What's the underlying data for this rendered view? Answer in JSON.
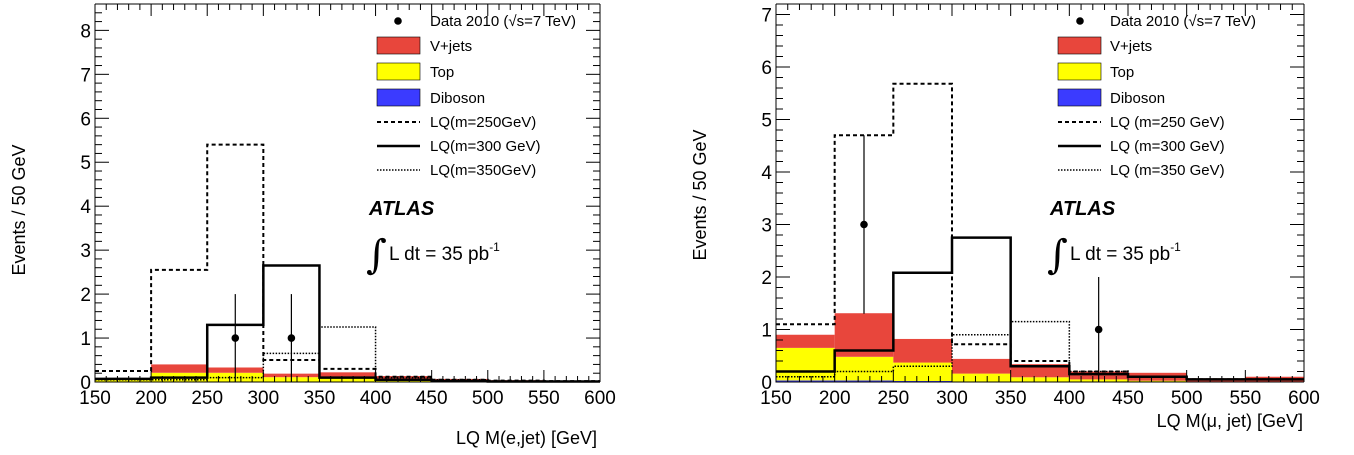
{
  "chart_data": [
    {
      "type": "histogram",
      "xlabel": "LQ M(e,jet) [GeV]",
      "ylabel": "Events / 50 GeV",
      "xlim": [
        150,
        600
      ],
      "ylim": [
        0,
        8.6
      ],
      "x_ticks": [
        "150",
        "200",
        "250",
        "300",
        "350",
        "400",
        "450",
        "500",
        "550",
        "600"
      ],
      "y_ticks": [
        "0",
        "1",
        "2",
        "3",
        "4",
        "5",
        "6",
        "7",
        "8"
      ],
      "bin_edges": [
        150,
        200,
        250,
        300,
        350,
        400,
        450,
        500,
        550,
        600
      ],
      "stack": [
        {
          "name": "Diboson",
          "color": "#3b3bff",
          "values": [
            0.01,
            0.01,
            0.01,
            0.01,
            0.01,
            0.005,
            0.0,
            0.0,
            0.0
          ]
        },
        {
          "name": "Top",
          "color": "#ffff00",
          "values": [
            0.04,
            0.2,
            0.2,
            0.1,
            0.07,
            0.05,
            0.02,
            0.01,
            0.0
          ]
        },
        {
          "name": "V+jets",
          "color": "#e8463c",
          "values": [
            0.04,
            0.19,
            0.12,
            0.08,
            0.14,
            0.08,
            0.05,
            0.03,
            0.03
          ]
        }
      ],
      "lq_lines": [
        {
          "name": "LQ(m=250GeV)",
          "style": "dashed",
          "values": [
            0.25,
            2.55,
            5.4,
            0.5,
            0.3,
            0.12,
            0.05,
            0.03,
            0.02
          ]
        },
        {
          "name": "LQ(m=300 GeV)",
          "style": "solid",
          "values": [
            0.07,
            0.1,
            1.3,
            2.65,
            0.1,
            0.05,
            0.02,
            0.01,
            0.01
          ]
        },
        {
          "name": "LQ(m=350GeV)",
          "style": "dotted",
          "values": [
            0.05,
            0.05,
            0.1,
            0.65,
            1.25,
            0.1,
            0.05,
            0.02,
            0.01
          ]
        }
      ],
      "data_points": [
        {
          "x": 275,
          "y": 1,
          "err": 1
        },
        {
          "x": 325,
          "y": 1,
          "err": 1
        }
      ],
      "legend": {
        "data": "Data 2010 (√s=7 TeV)",
        "vjets": "V+jets",
        "top": "Top",
        "diboson": "Diboson",
        "lq250": "LQ(m=250GeV)",
        "lq300": "LQ(m=300 GeV)",
        "lq350": "LQ(m=350GeV)"
      },
      "atlas_label": "ATLAS",
      "lumi_label": "L dt = 35 pb",
      "lumi_sup": "-1"
    },
    {
      "type": "histogram",
      "xlabel": "LQ M(μ, jet) [GeV]",
      "ylabel": "Events / 50 GeV",
      "xlim": [
        150,
        600
      ],
      "ylim": [
        0,
        7.2
      ],
      "x_ticks": [
        "150",
        "200",
        "250",
        "300",
        "350",
        "400",
        "450",
        "500",
        "550",
        "600"
      ],
      "y_ticks": [
        "0",
        "1",
        "2",
        "3",
        "4",
        "5",
        "6",
        "7"
      ],
      "bin_edges": [
        150,
        200,
        250,
        300,
        350,
        400,
        450,
        500,
        550,
        600
      ],
      "stack": [
        {
          "name": "Diboson",
          "color": "#3b3bff",
          "values": [
            0.03,
            0.03,
            0.02,
            0.01,
            0.01,
            0.01,
            0.005,
            0.0,
            0.0
          ]
        },
        {
          "name": "Top",
          "color": "#ffff00",
          "values": [
            0.62,
            0.45,
            0.35,
            0.15,
            0.08,
            0.04,
            0.02,
            0.01,
            0.0
          ]
        },
        {
          "name": "V+jets",
          "color": "#e8463c",
          "values": [
            0.25,
            0.83,
            0.45,
            0.28,
            0.25,
            0.15,
            0.15,
            0.06,
            0.1
          ]
        }
      ],
      "lq_lines": [
        {
          "name": "LQ (m=250 GeV)",
          "style": "dashed",
          "values": [
            1.1,
            4.7,
            5.68,
            0.72,
            0.4,
            0.2,
            0.1,
            0.05,
            0.05
          ]
        },
        {
          "name": "LQ (m=300 GeV)",
          "style": "solid",
          "values": [
            0.2,
            0.6,
            2.08,
            2.75,
            0.3,
            0.15,
            0.1,
            0.05,
            0.05
          ]
        },
        {
          "name": "LQ (m=350 GeV)",
          "style": "dotted",
          "values": [
            0.1,
            0.2,
            0.3,
            0.9,
            1.15,
            0.2,
            0.1,
            0.05,
            0.05
          ]
        }
      ],
      "data_points": [
        {
          "x": 225,
          "y": 3,
          "err": 1.7
        },
        {
          "x": 425,
          "y": 1,
          "err": 1
        }
      ],
      "legend": {
        "data": "Data 2010 (√s=7 TeV)",
        "vjets": "V+jets",
        "top": "Top",
        "diboson": "Diboson",
        "lq250": "LQ (m=250 GeV)",
        "lq300": "LQ (m=300 GeV)",
        "lq350": "LQ (m=350 GeV)"
      },
      "atlas_label": "ATLAS",
      "lumi_label": "L dt = 35 pb",
      "lumi_sup": "-1"
    }
  ]
}
